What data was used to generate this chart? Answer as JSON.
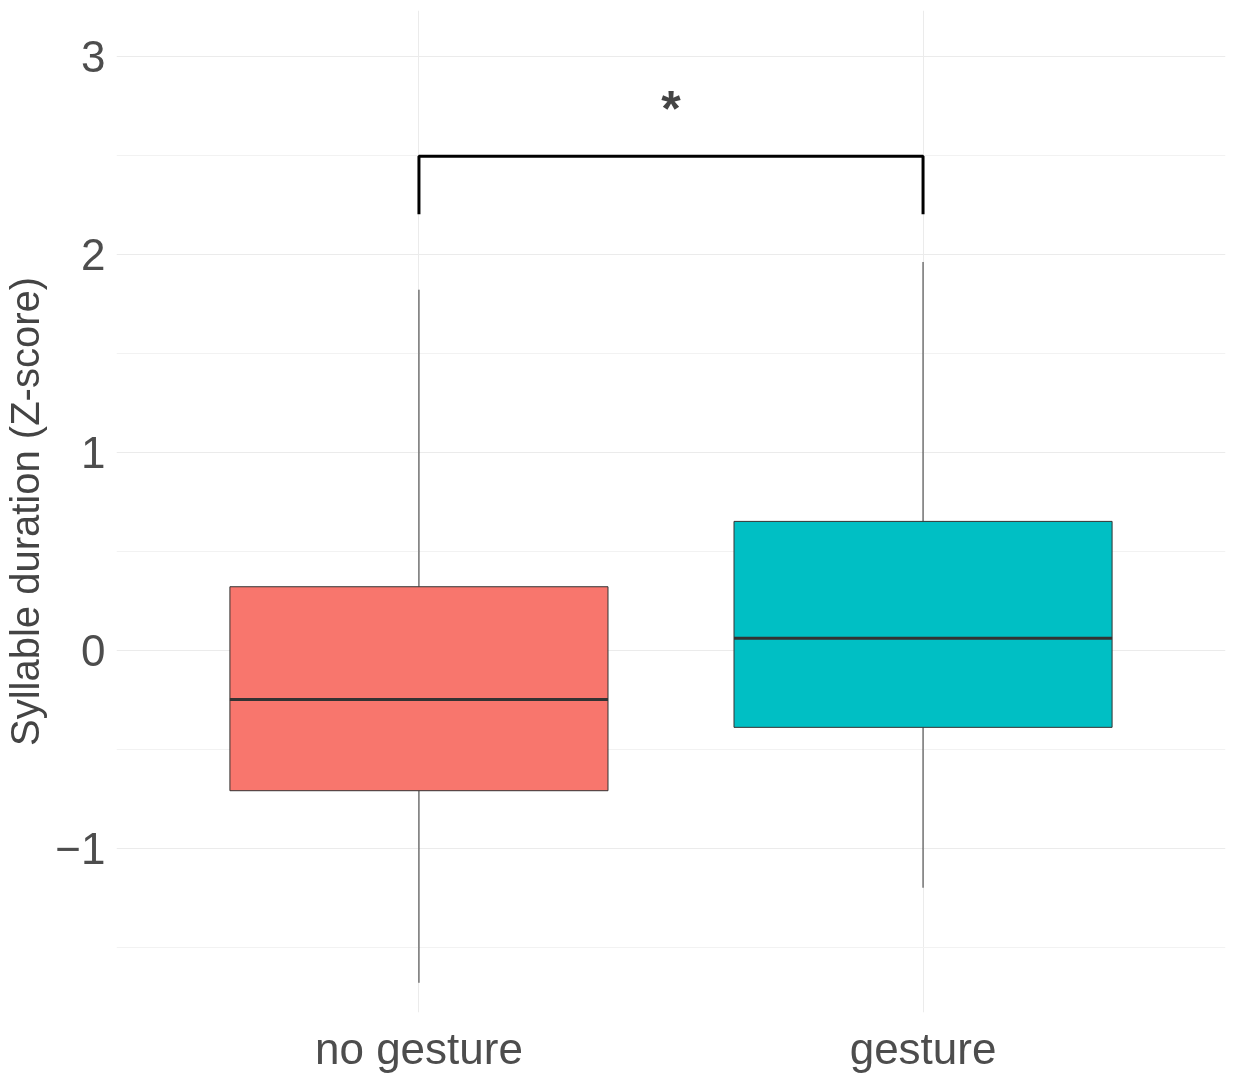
{
  "chart_data": {
    "type": "box",
    "ylabel": "Syllable duration (Z-score)",
    "categories": [
      "no gesture",
      "gesture"
    ],
    "colors": [
      "#f8766d",
      "#00bfc4"
    ],
    "boxes": [
      {
        "low": -1.68,
        "q1": -0.71,
        "median": -0.25,
        "q3": 0.32,
        "high": 1.82
      },
      {
        "low": -1.2,
        "q1": -0.39,
        "median": 0.06,
        "q3": 0.65,
        "high": 1.96
      }
    ],
    "ylim": [
      -1.83,
      3.23
    ],
    "yticks": [
      -1,
      0,
      1,
      2,
      3
    ],
    "grid": true,
    "annotations": [
      "*"
    ]
  }
}
